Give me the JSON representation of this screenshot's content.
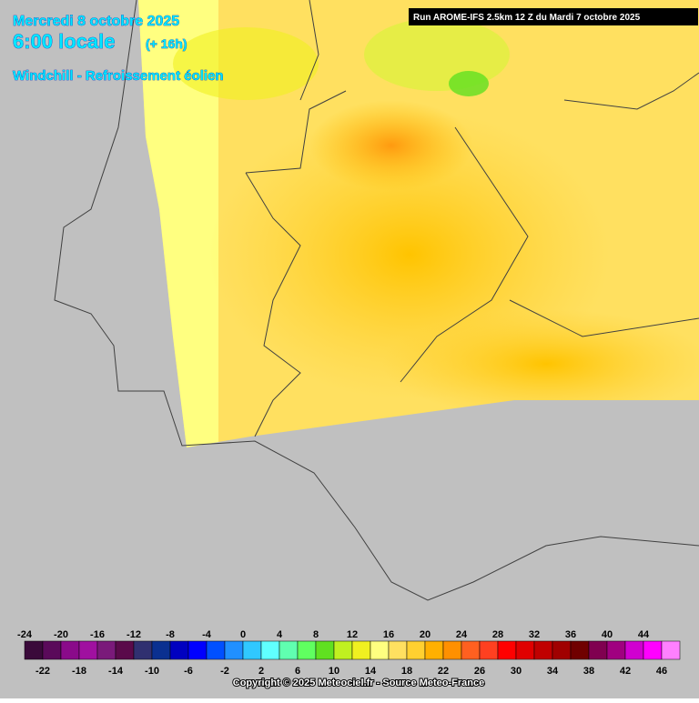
{
  "header": {
    "date": "Mercredi 8 octobre 2025",
    "time": "6:00 locale",
    "offset": "(+ 16h)",
    "parameter": "Windchill - Refroissement éolien",
    "run": "Run AROME-IFS 2.5km 12 Z du Mardi 7 octobre 2025"
  },
  "legend": {
    "values": [
      -24,
      -22,
      -20,
      -18,
      -16,
      -14,
      -12,
      -10,
      -8,
      -6,
      -4,
      -2,
      0,
      2,
      4,
      6,
      8,
      10,
      12,
      14,
      16,
      18,
      20,
      22,
      24,
      26,
      28,
      30,
      32,
      34,
      36,
      38,
      40,
      42,
      44,
      46
    ],
    "colors": [
      "#3a0a3a",
      "#5a0a5a",
      "#8a0a8a",
      "#a010a0",
      "#7a1a7a",
      "#5a0a4a",
      "#303070",
      "#0a3090",
      "#0000c0",
      "#0000ff",
      "#0050ff",
      "#2090ff",
      "#30c8ff",
      "#60ffff",
      "#60ffb0",
      "#60ff60",
      "#60e020",
      "#c0f020",
      "#f0f020",
      "#ffff80",
      "#ffe060",
      "#ffd030",
      "#ffb000",
      "#ff9000",
      "#ff6020",
      "#ff4020",
      "#ff0000",
      "#e00000",
      "#c00000",
      "#a00000",
      "#700000",
      "#800050",
      "#a00080",
      "#d000d0",
      "#ff00ff",
      "#ff80ff"
    ]
  },
  "footer": {
    "copyright": "Copyright © 2025 Meteociel.fr - Source Meteo-France"
  }
}
